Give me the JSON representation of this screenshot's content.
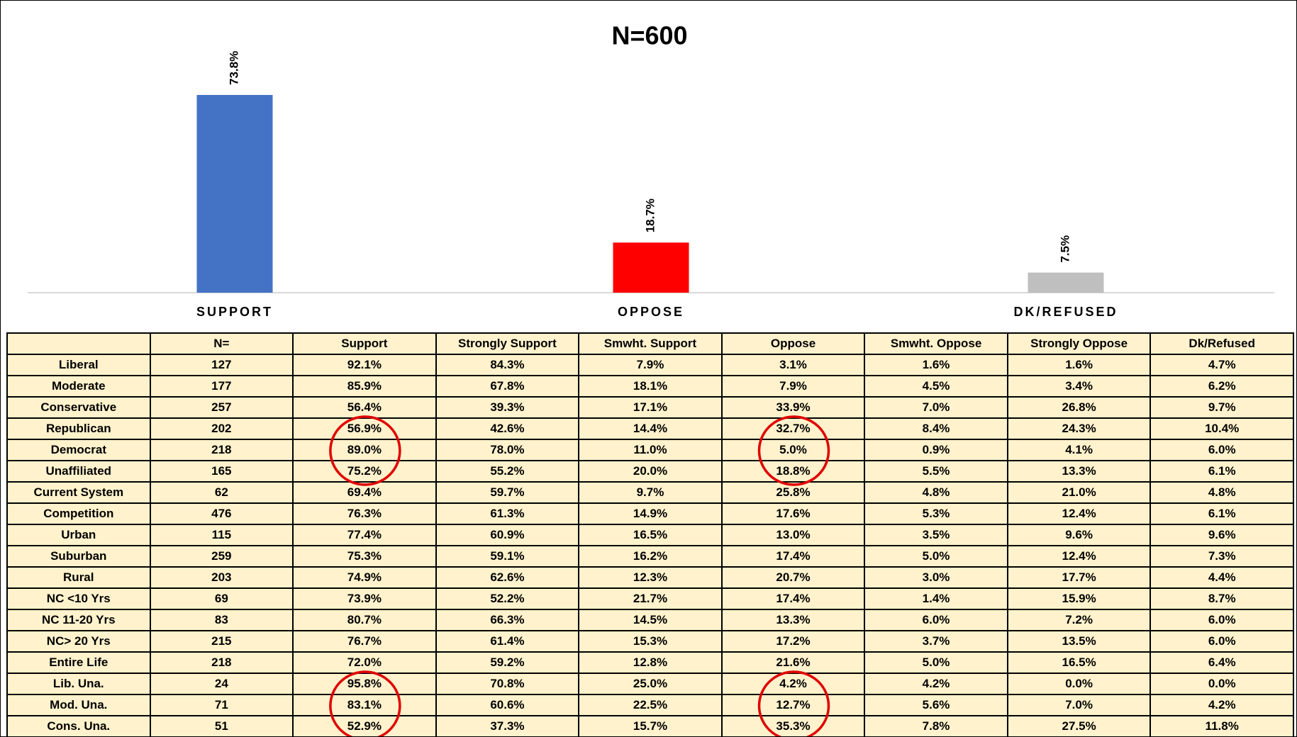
{
  "chart_data": {
    "type": "bar",
    "title": "N=600",
    "categories": [
      "SUPPORT",
      "OPPOSE",
      "DK/REFUSED"
    ],
    "values": [
      73.8,
      18.7,
      7.5
    ],
    "value_labels": [
      "73.8%",
      "18.7%",
      "7.5%"
    ],
    "colors": [
      "#4472c4",
      "#ff0000",
      "#bfbfbf"
    ]
  },
  "table": {
    "header": [
      "",
      "N=",
      "Support",
      "Strongly Support",
      "Smwht. Support",
      "Oppose",
      "Smwht. Oppose",
      "Strongly Oppose",
      "Dk/Refused"
    ],
    "rows": [
      [
        "Liberal",
        "127",
        "92.1%",
        "84.3%",
        "7.9%",
        "3.1%",
        "1.6%",
        "1.6%",
        "4.7%"
      ],
      [
        "Moderate",
        "177",
        "85.9%",
        "67.8%",
        "18.1%",
        "7.9%",
        "4.5%",
        "3.4%",
        "6.2%"
      ],
      [
        "Conservative",
        "257",
        "56.4%",
        "39.3%",
        "17.1%",
        "33.9%",
        "7.0%",
        "26.8%",
        "9.7%"
      ],
      [
        "Republican",
        "202",
        "56.9%",
        "42.6%",
        "14.4%",
        "32.7%",
        "8.4%",
        "24.3%",
        "10.4%"
      ],
      [
        "Democrat",
        "218",
        "89.0%",
        "78.0%",
        "11.0%",
        "5.0%",
        "0.9%",
        "4.1%",
        "6.0%"
      ],
      [
        "Unaffiliated",
        "165",
        "75.2%",
        "55.2%",
        "20.0%",
        "18.8%",
        "5.5%",
        "13.3%",
        "6.1%"
      ],
      [
        "Current System",
        "62",
        "69.4%",
        "59.7%",
        "9.7%",
        "25.8%",
        "4.8%",
        "21.0%",
        "4.8%"
      ],
      [
        "Competition",
        "476",
        "76.3%",
        "61.3%",
        "14.9%",
        "17.6%",
        "5.3%",
        "12.4%",
        "6.1%"
      ],
      [
        "Urban",
        "115",
        "77.4%",
        "60.9%",
        "16.5%",
        "13.0%",
        "3.5%",
        "9.6%",
        "9.6%"
      ],
      [
        "Suburban",
        "259",
        "75.3%",
        "59.1%",
        "16.2%",
        "17.4%",
        "5.0%",
        "12.4%",
        "7.3%"
      ],
      [
        "Rural",
        "203",
        "74.9%",
        "62.6%",
        "12.3%",
        "20.7%",
        "3.0%",
        "17.7%",
        "4.4%"
      ],
      [
        "NC <10 Yrs",
        "69",
        "73.9%",
        "52.2%",
        "21.7%",
        "17.4%",
        "1.4%",
        "15.9%",
        "8.7%"
      ],
      [
        "NC 11-20 Yrs",
        "83",
        "80.7%",
        "66.3%",
        "14.5%",
        "13.3%",
        "6.0%",
        "7.2%",
        "6.0%"
      ],
      [
        "NC> 20 Yrs",
        "215",
        "76.7%",
        "61.4%",
        "15.3%",
        "17.2%",
        "3.7%",
        "13.5%",
        "6.0%"
      ],
      [
        "Entire Life",
        "218",
        "72.0%",
        "59.2%",
        "12.8%",
        "21.6%",
        "5.0%",
        "16.5%",
        "6.4%"
      ],
      [
        "Lib. Una.",
        "24",
        "95.8%",
        "70.8%",
        "25.0%",
        "4.2%",
        "4.2%",
        "0.0%",
        "0.0%"
      ],
      [
        "Mod. Una.",
        "71",
        "83.1%",
        "60.6%",
        "22.5%",
        "12.7%",
        "5.6%",
        "7.0%",
        "4.2%"
      ],
      [
        "Cons. Una.",
        "51",
        "52.9%",
        "37.3%",
        "15.7%",
        "35.3%",
        "7.8%",
        "27.5%",
        "11.8%"
      ]
    ]
  }
}
